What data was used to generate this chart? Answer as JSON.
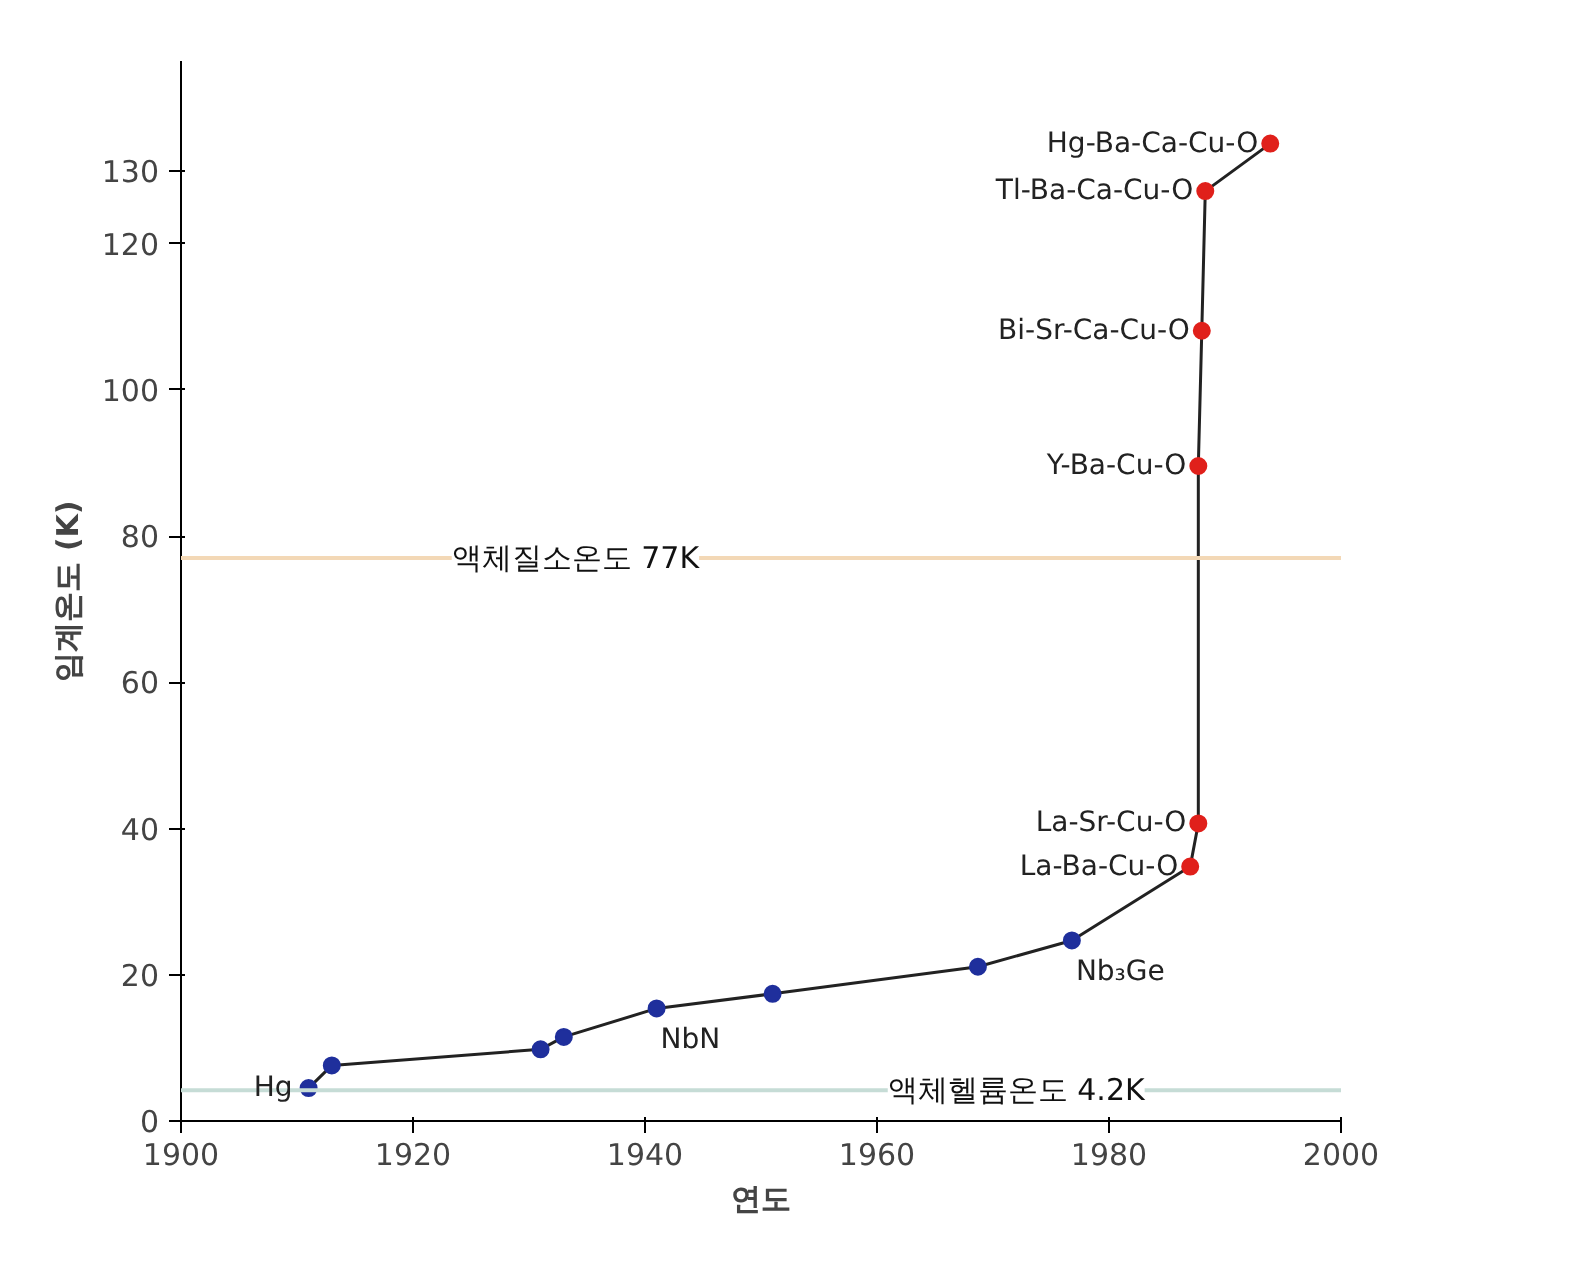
{
  "chart_data": {
    "type": "line",
    "xlabel": "연도",
    "ylabel": "임계온도 (K)",
    "xlim": [
      1900,
      2000
    ],
    "xticks": [
      1900,
      1920,
      1940,
      1960,
      1980,
      2000
    ],
    "ylim": [
      0,
      145
    ],
    "yticks": [
      0,
      20,
      40,
      60,
      80,
      100,
      120,
      130
    ],
    "grid": false,
    "marker": "circle",
    "line_style": "solid",
    "series": [
      {
        "color": "#222222",
        "x": [
          1911,
          1913,
          1931,
          1933,
          1941,
          1951,
          1968.7,
          1976.8,
          1987,
          1987.7,
          1987.7,
          1988,
          1988.3,
          1993.9
        ],
        "values": [
          4.5,
          7.6,
          9.8,
          11.5,
          15.4,
          17.4,
          21.1,
          24.7,
          34.8,
          40.7,
          89.6,
          108.1,
          127.2,
          133.7
        ],
        "colors": [
          "#1f2f9c",
          "#1f2f9c",
          "#1f2f9c",
          "#1f2f9c",
          "#1f2f9c",
          "#1f2f9c",
          "#1f2f9c",
          "#1f2f9c",
          "#e0201b",
          "#e0201b",
          "#e0201b",
          "#e0201b",
          "#e0201b",
          "#e0201b"
        ]
      }
    ],
    "ref_lines": [
      {
        "axis": "y",
        "value": 77,
        "label": "액체질소온도 77K",
        "color": "#f3d8b6"
      },
      {
        "axis": "y",
        "value": 4.2,
        "label": "액체헬륨온도 4.2K",
        "color": "#c6dcd6"
      }
    ],
    "annotations": [
      {
        "text": "Hg",
        "x": 1911,
        "y": 4.5
      },
      {
        "text": "NbN",
        "x": 1941,
        "y": 15.4
      },
      {
        "text": "Nb₃Ge",
        "x": 1976.8,
        "y": 24.7
      },
      {
        "text": "La-Ba-Cu-O",
        "x": 1987,
        "y": 34.8
      },
      {
        "text": "La-Sr-Cu-O",
        "x": 1987.7,
        "y": 40.7
      },
      {
        "text": "Y-Ba-Cu-O",
        "x": 1987.7,
        "y": 89.6
      },
      {
        "text": "Bi-Sr-Ca-Cu-O",
        "x": 1988,
        "y": 108.1
      },
      {
        "text": "Tl-Ba-Ca-Cu-O",
        "x": 1988.3,
        "y": 127.2
      },
      {
        "text": "Hg-Ba-Ca-Cu-O",
        "x": 1993.9,
        "y": 133.7
      }
    ]
  }
}
